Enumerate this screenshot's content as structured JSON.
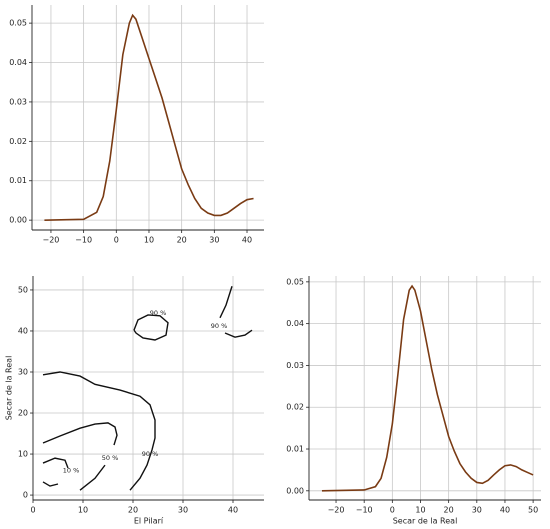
{
  "chart_data": [
    {
      "type": "line",
      "color": "#7a3b14",
      "x": [
        -22,
        -10,
        -6,
        -4,
        -2,
        0,
        2,
        4,
        5,
        6,
        8,
        10,
        12,
        14,
        16,
        18,
        20,
        22,
        24,
        26,
        28,
        30,
        32,
        34,
        36,
        38,
        40,
        42
      ],
      "values": [
        0,
        0.0002,
        0.002,
        0.006,
        0.015,
        0.028,
        0.042,
        0.05,
        0.052,
        0.051,
        0.046,
        0.041,
        0.036,
        0.031,
        0.025,
        0.019,
        0.013,
        0.009,
        0.0055,
        0.003,
        0.0018,
        0.0012,
        0.0012,
        0.0018,
        0.003,
        0.0042,
        0.0052,
        0.0055
      ],
      "xlim": [
        -25.8,
        45.2
      ],
      "ylim": [
        -0.0025,
        0.0546
      ],
      "xticks": [
        {
          "value": -20,
          "label": "−20"
        },
        {
          "value": -10,
          "label": "−10"
        },
        0,
        10,
        20,
        30,
        40
      ],
      "yticks": [
        {
          "value": 0,
          "label": "0.00"
        },
        {
          "value": 0.01,
          "label": "0.01"
        },
        {
          "value": 0.02,
          "label": "0.02"
        },
        {
          "value": 0.03,
          "label": "0.03"
        },
        {
          "value": 0.04,
          "label": "0.04"
        },
        {
          "value": 0.05,
          "label": "0.05"
        }
      ],
      "grid": true
    },
    {
      "type": "contour",
      "x_label": "El Pilarí",
      "y_label": "Secar de la Real",
      "series": [
        {
          "color": "#111111",
          "x": [
            2,
            5.4,
            9.4,
            12.4,
            17.4,
            21.4,
            23.4,
            24.4,
            24.4,
            23.8,
            22.8,
            21.4,
            19.4
          ],
          "y": [
            29.3,
            30,
            29,
            27,
            25.6,
            24.1,
            22,
            18.3,
            13.9,
            11,
            7.3,
            4.1,
            1.2
          ]
        },
        {
          "color": "#111111",
          "x": [
            2,
            5.4,
            9.4,
            12.4,
            15,
            16.4,
            16.8,
            16.2
          ],
          "y": [
            12.7,
            14.4,
            16.3,
            17.3,
            17.6,
            16.6,
            14.6,
            12.2
          ]
        },
        {
          "color": "#111111",
          "x": [
            9.4,
            12.4,
            14.4
          ],
          "y": [
            1.2,
            4.1,
            7.3
          ]
        },
        {
          "color": "#111111",
          "x": [
            2,
            4.4,
            6.4,
            7
          ],
          "y": [
            7.8,
            9,
            8.5,
            6.6
          ]
        },
        {
          "color": "#111111",
          "x": [
            2,
            3.4,
            5
          ],
          "y": [
            3.2,
            2.2,
            2.7
          ]
        },
        {
          "color": "#111111",
          "x": [
            20.2,
            21,
            23,
            25.4,
            27,
            26.6,
            24.4,
            22,
            20.6,
            20.2
          ],
          "y": [
            40.2,
            42.7,
            43.9,
            43.7,
            42,
            39,
            37.8,
            38.3,
            39.5,
            40.2
          ]
        },
        {
          "color": "#111111",
          "x": [
            37.4,
            38.6,
            39.8
          ],
          "y": [
            43.2,
            46.3,
            50.9
          ]
        },
        {
          "color": "#111111",
          "x": [
            38.4,
            40.4,
            42.4,
            43.8
          ],
          "y": [
            39.5,
            38.5,
            39,
            40.2
          ]
        }
      ],
      "annotations": [
        {
          "text": "10 %",
          "x": 7.6,
          "y": 6
        },
        {
          "text": "50 %",
          "x": 15.4,
          "y": 9
        },
        {
          "text": "90 %",
          "x": 23.4,
          "y": 10
        },
        {
          "text": "90 %",
          "x": 25,
          "y": 44.4
        },
        {
          "text": "90 %",
          "x": 37.2,
          "y": 41.2
        }
      ],
      "xlim": [
        0,
        46.2
      ],
      "ylim": [
        -1.2,
        53.4
      ],
      "xticks": [
        0,
        10,
        20,
        30,
        40
      ],
      "yticks": [
        0,
        10,
        20,
        30,
        40,
        50
      ],
      "grid": true
    },
    {
      "type": "line",
      "color": "#7a3b14",
      "x_label": "Secar de la Real",
      "x": [
        -25,
        -10,
        -6,
        -4,
        -2,
        0,
        2,
        4,
        6,
        7,
        8,
        10,
        12,
        14,
        16,
        18,
        20,
        22,
        24,
        26,
        28,
        30,
        32,
        34,
        36,
        38,
        40,
        42,
        44,
        46,
        48,
        50
      ],
      "values": [
        0,
        0.0002,
        0.001,
        0.003,
        0.008,
        0.016,
        0.028,
        0.041,
        0.048,
        0.049,
        0.048,
        0.043,
        0.036,
        0.029,
        0.023,
        0.018,
        0.013,
        0.0095,
        0.0065,
        0.0045,
        0.003,
        0.002,
        0.0018,
        0.0025,
        0.0038,
        0.005,
        0.006,
        0.0062,
        0.0058,
        0.005,
        0.0044,
        0.0038
      ],
      "xlim": [
        -29.6,
        52.8
      ],
      "ylim": [
        -0.0022,
        0.0514
      ],
      "xticks": [
        {
          "value": -20,
          "label": "−20"
        },
        {
          "value": -10,
          "label": "−10"
        },
        0,
        10,
        20,
        30,
        40,
        50
      ],
      "yticks": [
        {
          "value": 0,
          "label": "0.00"
        },
        {
          "value": 0.01,
          "label": "0.01"
        },
        {
          "value": 0.02,
          "label": "0.02"
        },
        {
          "value": 0.03,
          "label": "0.03"
        },
        {
          "value": 0.04,
          "label": "0.04"
        },
        {
          "value": 0.05,
          "label": "0.05"
        }
      ],
      "grid": true
    }
  ]
}
